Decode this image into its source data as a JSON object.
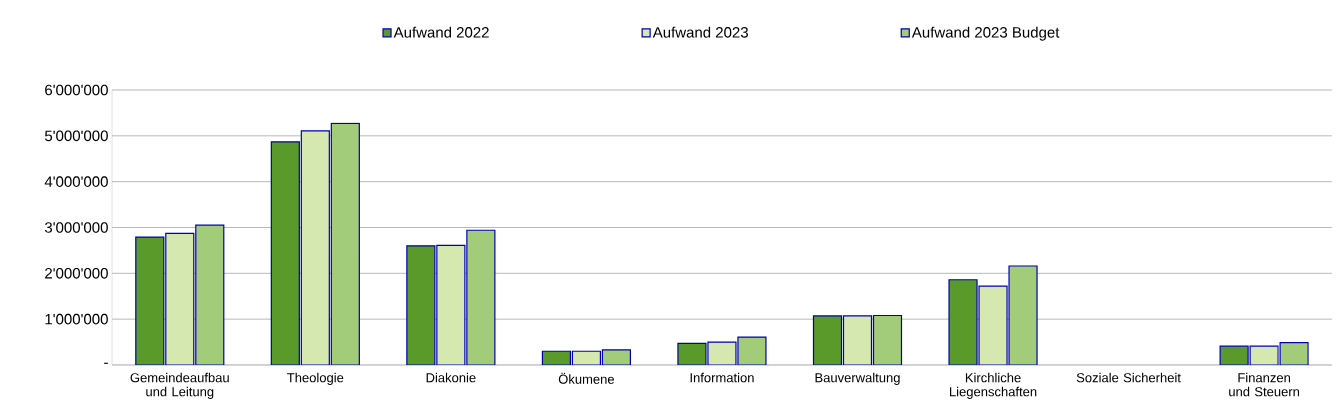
{
  "chart_data": {
    "type": "bar",
    "categories": [
      "Gemeindeaufbau und Leitung",
      "Theologie",
      "Diakonie",
      "Ökumene",
      "Information",
      "Bauverwaltung",
      "Kirchliche Liegenschaften",
      "Soziale Sicherheit",
      "Finanzen und Steuern"
    ],
    "series": [
      {
        "name": "Aufwand 2022",
        "color": "#5a9a2a",
        "values": [
          2790000,
          4870000,
          2600000,
          300000,
          470000,
          1070000,
          1860000,
          null,
          410000
        ]
      },
      {
        "name": "Aufwand 2023",
        "color": "#d4e8b0",
        "values": [
          2870000,
          5110000,
          2610000,
          300000,
          500000,
          1070000,
          1720000,
          null,
          410000
        ]
      },
      {
        "name": "Aufwand 2023 Budget",
        "color": "#a3cc7a",
        "values": [
          3050000,
          5270000,
          2940000,
          330000,
          610000,
          1080000,
          2160000,
          null,
          490000
        ]
      }
    ],
    "ylim": [
      0,
      6000000
    ],
    "yticks": [
      {
        "value": 0,
        "label": "-"
      },
      {
        "value": 1000000,
        "label": "1'000'000"
      },
      {
        "value": 2000000,
        "label": "2'000'000"
      },
      {
        "value": 3000000,
        "label": "3'000'000"
      },
      {
        "value": 4000000,
        "label": "4'000'000"
      },
      {
        "value": 5000000,
        "label": "5'000'000"
      },
      {
        "value": 6000000,
        "label": "6'000'000"
      }
    ],
    "grid": "y",
    "legend": "top"
  }
}
